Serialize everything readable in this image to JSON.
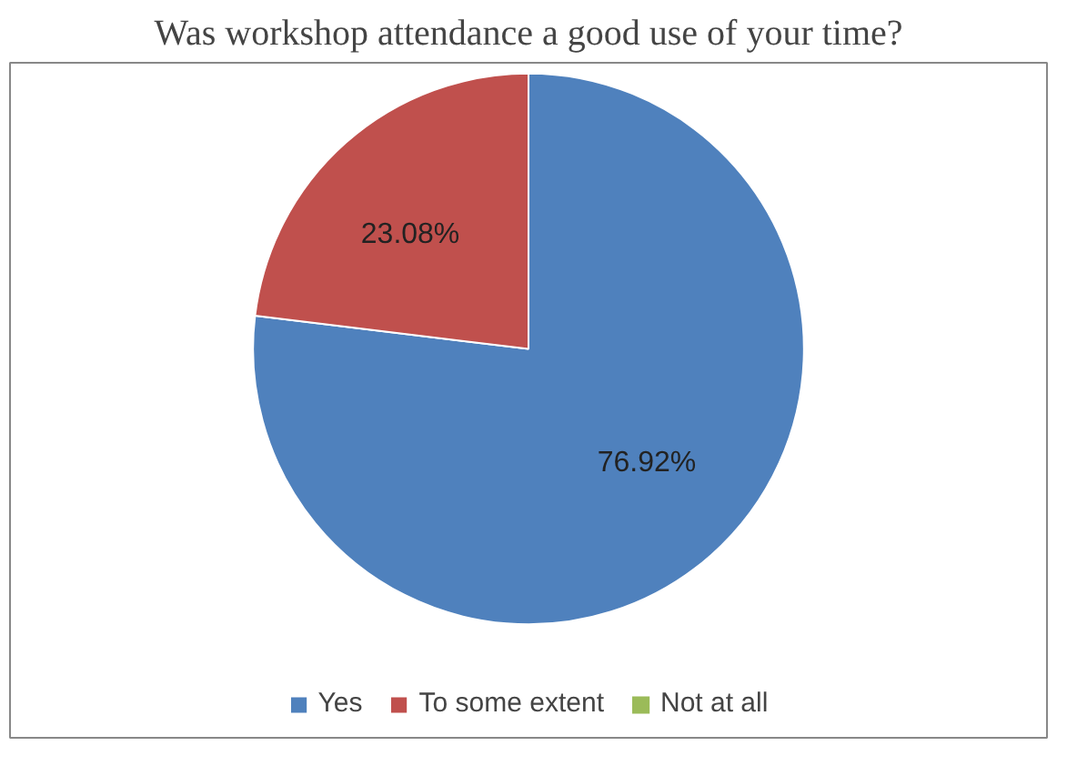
{
  "chart_data": {
    "type": "pie",
    "title": "Was workshop attendance a good use of your time?",
    "categories": [
      "Yes",
      "To some extent",
      "Not at all"
    ],
    "values": [
      76.92,
      23.08,
      0
    ],
    "value_labels": [
      "76.92%",
      "23.08%",
      null
    ],
    "colors": [
      "#4f81bd",
      "#c0504d",
      "#9bbb59"
    ],
    "legend": "bottom"
  }
}
